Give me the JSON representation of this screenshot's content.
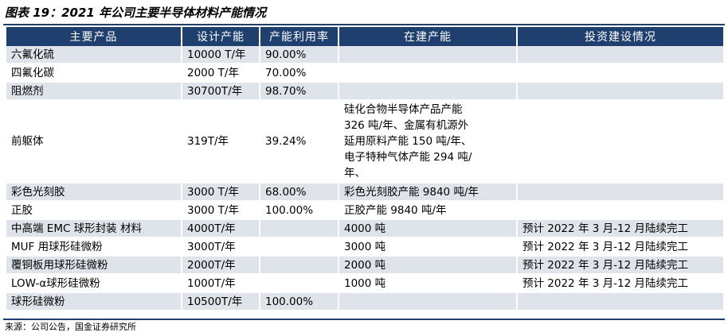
{
  "figure": {
    "title": "图表 19：2021 年公司主要半导体材料产能情况",
    "source": "来源：公司公告，国金证券研究所"
  },
  "table": {
    "headers": [
      "主要产品",
      "设计产能",
      "产能利用率",
      "在建产能",
      "投资建设情况"
    ],
    "rows": [
      {
        "product": "六氟化硫",
        "capacity": "10000 T/年",
        "utilization": "90.00%",
        "under_construction": [],
        "investment": ""
      },
      {
        "product": "四氟化碳",
        "capacity": "2000 T/年",
        "utilization": "70.00%",
        "under_construction": [],
        "investment": ""
      },
      {
        "product": "阻燃剂",
        "capacity": "30700T/年",
        "utilization": "98.70%",
        "under_construction": [],
        "investment": ""
      },
      {
        "product": "前躯体",
        "capacity": "319T/年",
        "utilization": "39.24%",
        "under_construction": [
          "硅化合物半导体产品产能",
          "326 吨/年、金属有机源外",
          "延用原料产能 150 吨/年、",
          "电子特种气体产能 294 吨/",
          "年、"
        ],
        "investment": ""
      },
      {
        "product": "彩色光刻胶",
        "capacity": "3000 T/年",
        "utilization": "68.00%",
        "under_construction": [
          "彩色光刻胶产能 9840 吨/年"
        ],
        "investment": ""
      },
      {
        "product": "正胶",
        "capacity": "3000 T/年",
        "utilization": "100.00%",
        "under_construction": [
          "正胶产能 9840 吨/年"
        ],
        "investment": ""
      },
      {
        "product": "中高端 EMC 球形封装 材料",
        "capacity": "4000T/年",
        "utilization": "",
        "under_construction": [
          "4000 吨"
        ],
        "investment": "预计 2022 年 3 月-12 月陆续完工"
      },
      {
        "product": "MUF 用球形硅微粉",
        "capacity": "3000T/年",
        "utilization": "",
        "under_construction": [
          "3000 吨"
        ],
        "investment": "预计 2022 年 3 月-12 月陆续完工"
      },
      {
        "product": "覆铜板用球形硅微粉",
        "capacity": "2000T/年",
        "utilization": "",
        "under_construction": [
          "2000 吨"
        ],
        "investment": "预计 2022 年 3 月-12 月陆续完工"
      },
      {
        "product": "LOW-α球形硅微粉",
        "capacity": "1000T/年",
        "utilization": "",
        "under_construction": [
          "1000 吨"
        ],
        "investment": "预计 2022 年 3 月-12 月陆续完工"
      },
      {
        "product": "球形硅微粉",
        "capacity": "10500T/年",
        "utilization": "100.00%",
        "under_construction": [],
        "investment": ""
      }
    ]
  }
}
